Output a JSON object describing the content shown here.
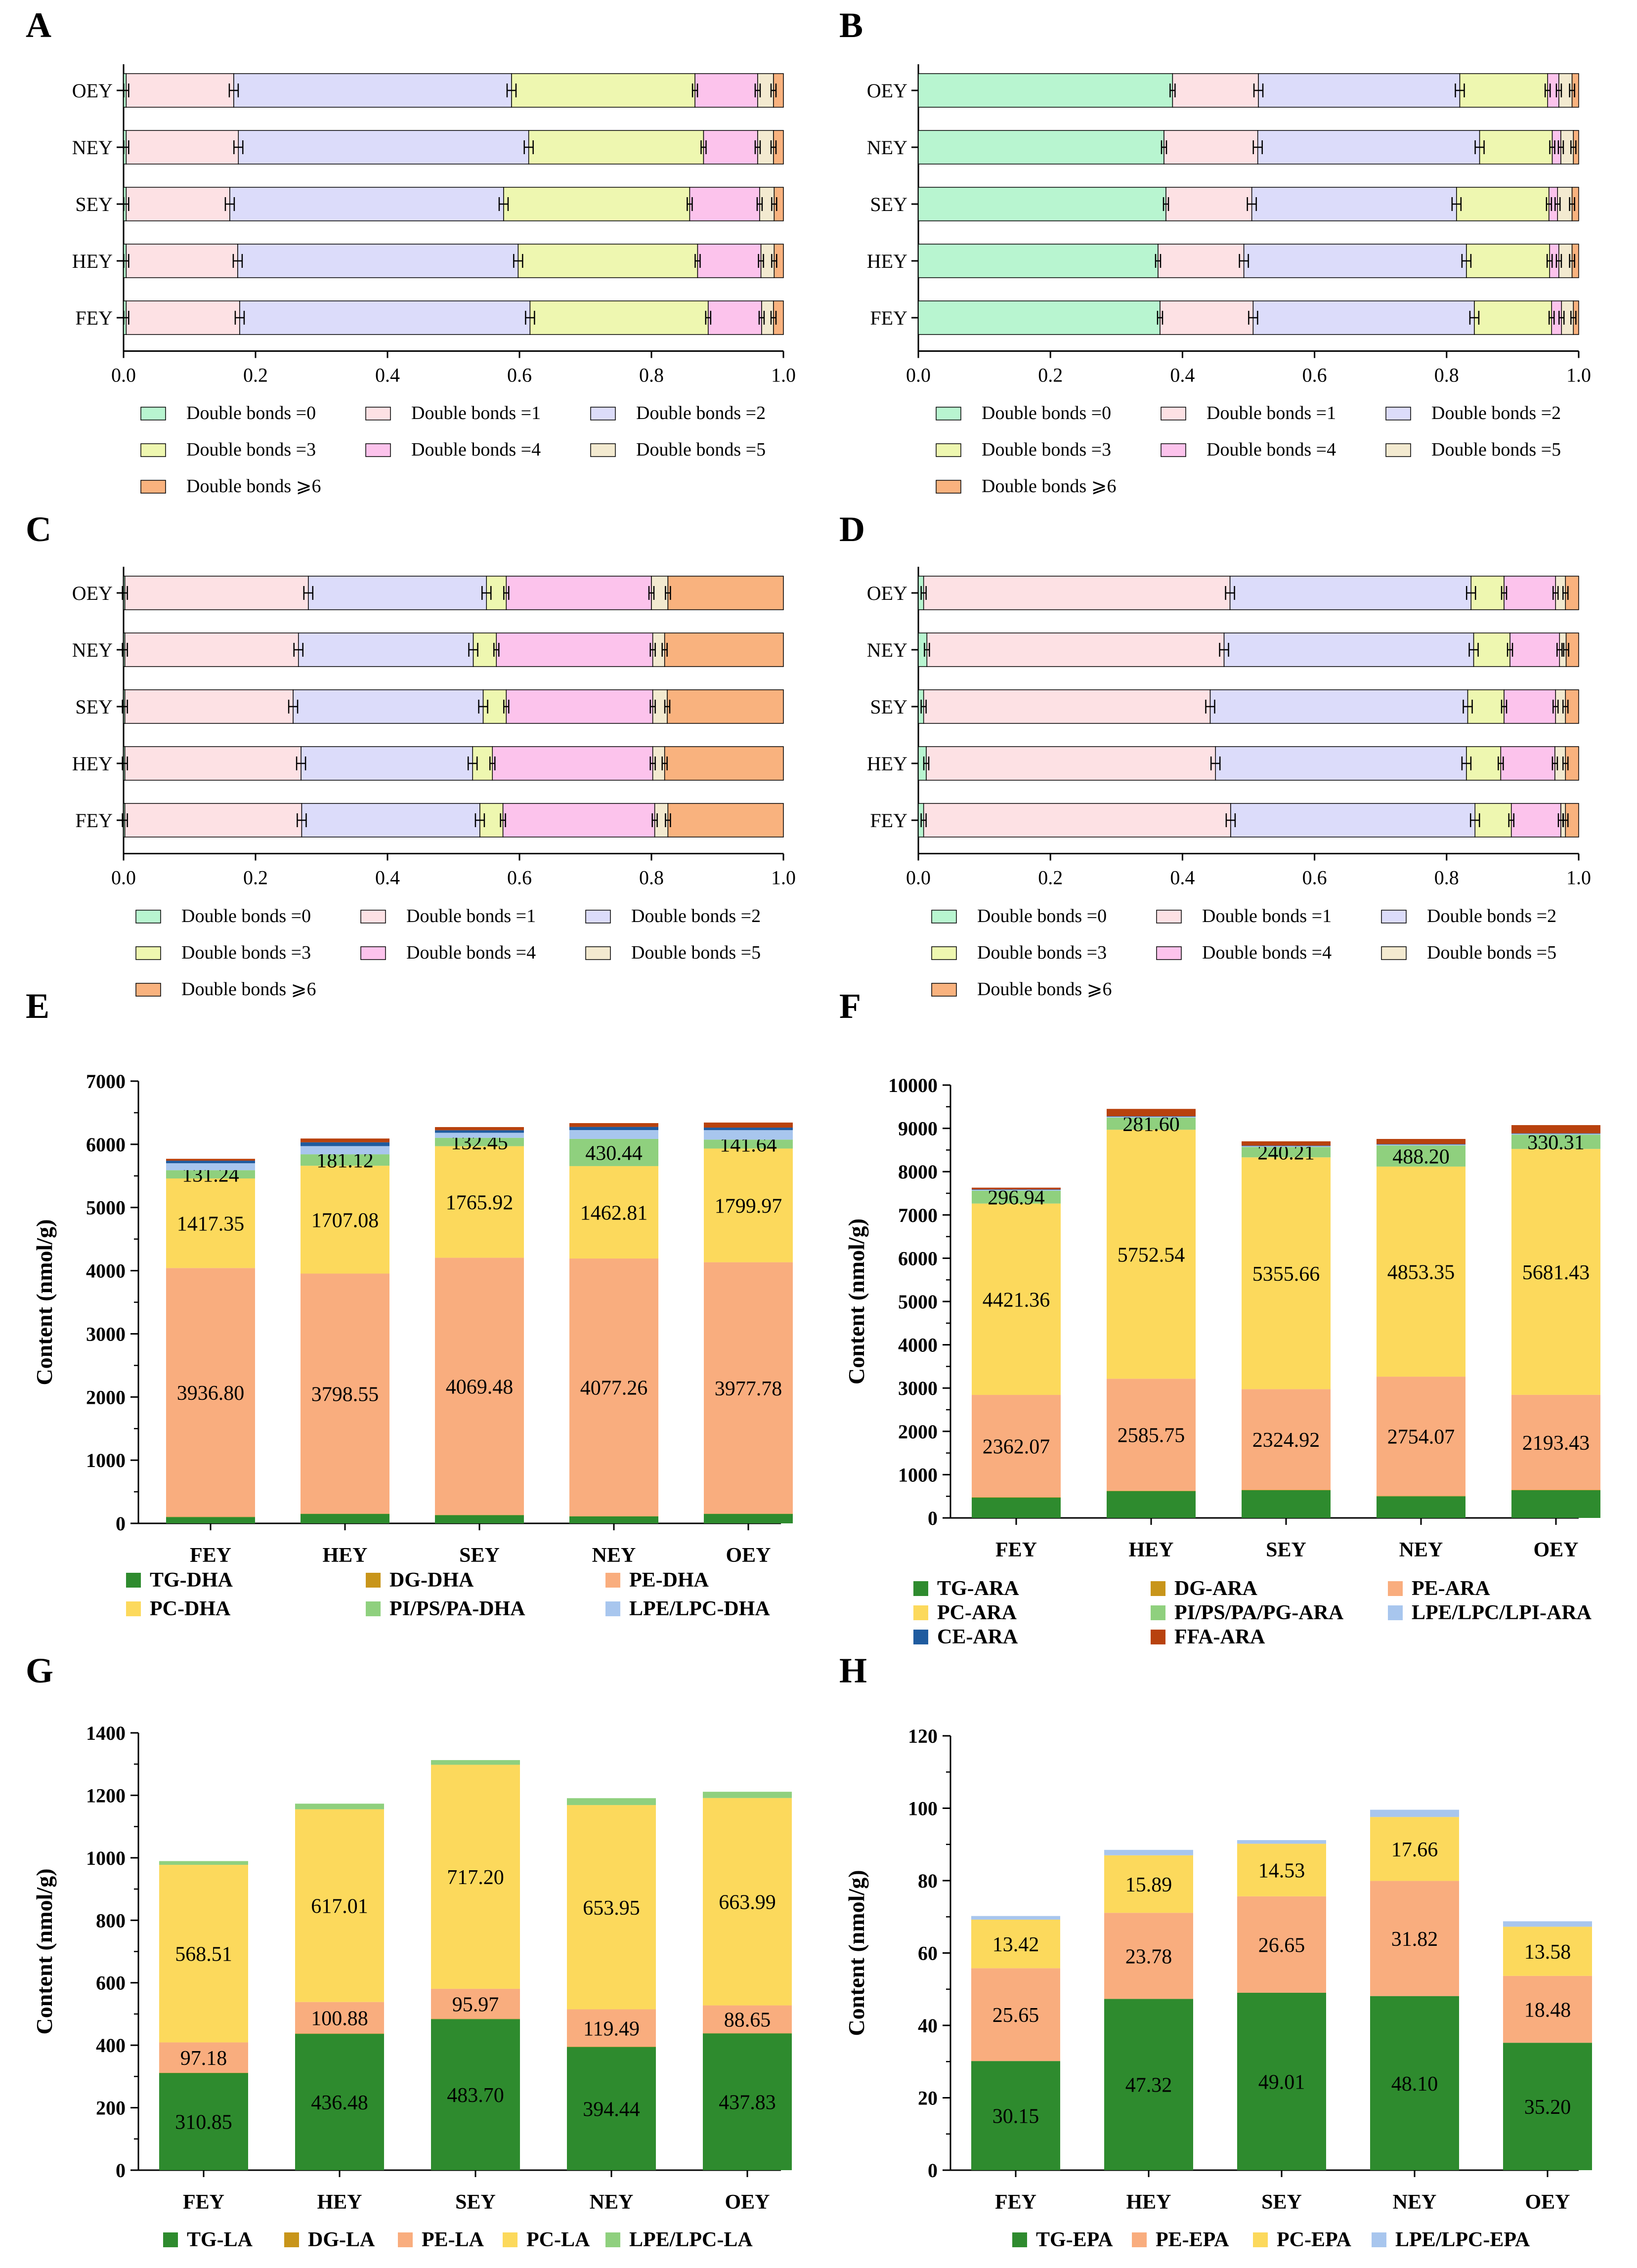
{
  "figure": {
    "background": "#ffffff"
  },
  "stack_palette": {
    "Double bonds =0": "#b8f5d0",
    "Double bonds =1": "#fde1e4",
    "Double bonds =2": "#dcdcfa",
    "Double bonds =3": "#eef7b0",
    "Double bonds =4": "#fcc3ec",
    "Double bonds =5": "#f3ead0",
    "Double bonds ⩾6": "#f9b27e",
    "TG": "#2e8b2e",
    "DG": "#c8951a",
    "PE": "#f9ad7e",
    "PC": "#fcd95c",
    "PI": "#8fd07e",
    "LPE": "#a8c6ee",
    "CE": "#1f5b9f",
    "FFA": "#b8420e"
  },
  "chart_data": [
    {
      "panel": "A",
      "type": "bar",
      "orientation": "horizontal",
      "stacked": true,
      "categories": [
        "OEY",
        "NEY",
        "SEY",
        "HEY",
        "FEY"
      ],
      "xlim": [
        0,
        1
      ],
      "xticks": [
        "0.0",
        "0.2",
        "0.4",
        "0.6",
        "0.8",
        "1.0"
      ],
      "series": [
        {
          "name": "Double bonds =0",
          "values": [
            0.004,
            0.004,
            0.004,
            0.004,
            0.004
          ]
        },
        {
          "name": "Double bonds =1",
          "values": [
            0.163,
            0.17,
            0.157,
            0.169,
            0.172
          ]
        },
        {
          "name": "Double bonds =2",
          "values": [
            0.421,
            0.44,
            0.415,
            0.425,
            0.44
          ]
        },
        {
          "name": "Double bonds =3",
          "values": [
            0.278,
            0.265,
            0.282,
            0.272,
            0.27
          ]
        },
        {
          "name": "Double bonds =4",
          "values": [
            0.095,
            0.082,
            0.106,
            0.096,
            0.081
          ]
        },
        {
          "name": "Double bonds =5",
          "values": [
            0.024,
            0.024,
            0.022,
            0.02,
            0.018
          ]
        },
        {
          "name": "Double bonds ⩾6",
          "values": [
            0.015,
            0.015,
            0.014,
            0.014,
            0.015
          ]
        }
      ],
      "legend": [
        "Double bonds =0",
        "Double bonds =1",
        "Double bonds =2",
        "Double bonds =3",
        "Double bonds =4",
        "Double bonds =5",
        "Double bonds ⩾6"
      ]
    },
    {
      "panel": "B",
      "type": "bar",
      "orientation": "horizontal",
      "stacked": true,
      "categories": [
        "OEY",
        "NEY",
        "SEY",
        "HEY",
        "FEY"
      ],
      "xlim": [
        0,
        1
      ],
      "xticks": [
        "0.0",
        "0.2",
        "0.4",
        "0.6",
        "0.8",
        "1.0"
      ],
      "series": [
        {
          "name": "Double bonds =0",
          "values": [
            0.385,
            0.372,
            0.375,
            0.363,
            0.366
          ]
        },
        {
          "name": "Double bonds =1",
          "values": [
            0.13,
            0.142,
            0.13,
            0.13,
            0.141
          ]
        },
        {
          "name": "Double bonds =2",
          "values": [
            0.305,
            0.336,
            0.31,
            0.337,
            0.335
          ]
        },
        {
          "name": "Double bonds =3",
          "values": [
            0.133,
            0.11,
            0.14,
            0.126,
            0.117
          ]
        },
        {
          "name": "Double bonds =4",
          "values": [
            0.017,
            0.013,
            0.013,
            0.014,
            0.015
          ]
        },
        {
          "name": "Double bonds =5",
          "values": [
            0.02,
            0.019,
            0.022,
            0.02,
            0.018
          ]
        },
        {
          "name": "Double bonds ⩾6",
          "values": [
            0.01,
            0.008,
            0.01,
            0.01,
            0.008
          ]
        }
      ],
      "legend": [
        "Double bonds =0",
        "Double bonds =1",
        "Double bonds =2",
        "Double bonds =3",
        "Double bonds =4",
        "Double bonds =5",
        "Double bonds ⩾6"
      ]
    },
    {
      "panel": "C",
      "type": "bar",
      "orientation": "horizontal",
      "stacked": true,
      "categories": [
        "OEY",
        "NEY",
        "SEY",
        "HEY",
        "FEY"
      ],
      "xlim": [
        0,
        1
      ],
      "xticks": [
        "0.0",
        "0.2",
        "0.4",
        "0.6",
        "0.8",
        "1.0"
      ],
      "series": [
        {
          "name": "Double bonds =0",
          "values": [
            0.002,
            0.002,
            0.002,
            0.002,
            0.002
          ]
        },
        {
          "name": "Double bonds =1",
          "values": [
            0.278,
            0.263,
            0.255,
            0.267,
            0.268
          ]
        },
        {
          "name": "Double bonds =2",
          "values": [
            0.27,
            0.265,
            0.288,
            0.26,
            0.27
          ]
        },
        {
          "name": "Double bonds =3",
          "values": [
            0.03,
            0.035,
            0.035,
            0.03,
            0.035
          ]
        },
        {
          "name": "Double bonds =4",
          "values": [
            0.22,
            0.237,
            0.222,
            0.243,
            0.23
          ]
        },
        {
          "name": "Double bonds =5",
          "values": [
            0.025,
            0.018,
            0.022,
            0.018,
            0.02
          ]
        },
        {
          "name": "Double bonds ⩾6",
          "values": [
            0.175,
            0.18,
            0.176,
            0.18,
            0.175
          ]
        }
      ],
      "legend": [
        "Double bonds =0",
        "Double bonds =1",
        "Double bonds =2",
        "Double bonds =3",
        "Double bonds =4",
        "Double bonds =5",
        "Double bonds ⩾6"
      ]
    },
    {
      "panel": "D",
      "type": "bar",
      "orientation": "horizontal",
      "stacked": true,
      "categories": [
        "OEY",
        "NEY",
        "SEY",
        "HEY",
        "FEY"
      ],
      "xlim": [
        0,
        1
      ],
      "xticks": [
        "0.0",
        "0.2",
        "0.4",
        "0.6",
        "0.8",
        "1.0"
      ],
      "series": [
        {
          "name": "Double bonds =0",
          "values": [
            0.008,
            0.013,
            0.008,
            0.012,
            0.008
          ]
        },
        {
          "name": "Double bonds =1",
          "values": [
            0.464,
            0.45,
            0.434,
            0.438,
            0.465
          ]
        },
        {
          "name": "Double bonds =2",
          "values": [
            0.365,
            0.378,
            0.39,
            0.38,
            0.37
          ]
        },
        {
          "name": "Double bonds =3",
          "values": [
            0.05,
            0.055,
            0.055,
            0.052,
            0.055
          ]
        },
        {
          "name": "Double bonds =4",
          "values": [
            0.078,
            0.075,
            0.078,
            0.082,
            0.075
          ]
        },
        {
          "name": "Double bonds =5",
          "values": [
            0.015,
            0.01,
            0.015,
            0.016,
            0.007
          ]
        },
        {
          "name": "Double bonds ⩾6",
          "values": [
            0.02,
            0.019,
            0.02,
            0.02,
            0.02
          ]
        }
      ],
      "legend": [
        "Double bonds =0",
        "Double bonds =1",
        "Double bonds =2",
        "Double bonds =3",
        "Double bonds =4",
        "Double bonds =5",
        "Double bonds ⩾6"
      ]
    },
    {
      "panel": "E",
      "type": "bar",
      "stacked": true,
      "categories": [
        "FEY",
        "HEY",
        "SEY",
        "NEY",
        "OEY"
      ],
      "ylabel": "Content (nmol/g)",
      "ylim": [
        0,
        7000
      ],
      "yticks": [
        "0",
        "1000",
        "2000",
        "3000",
        "4000",
        "5000",
        "6000",
        "7000"
      ],
      "series": [
        {
          "name": "TG-DHA",
          "key": "TG",
          "values": [
            100,
            150,
            130,
            110,
            150
          ]
        },
        {
          "name": "DG-DHA",
          "key": "DG",
          "values": [
            5,
            5,
            5,
            5,
            5
          ]
        },
        {
          "name": "PE-DHA",
          "key": "PE",
          "values": [
            3936.8,
            3798.55,
            4069.48,
            4077.26,
            3977.78
          ],
          "labels": [
            "3936.80",
            "3798.55",
            "4069.48",
            "4077.26",
            "3977.78"
          ]
        },
        {
          "name": "PC-DHA",
          "key": "PC",
          "values": [
            1417.35,
            1707.08,
            1765.92,
            1462.81,
            1799.97
          ],
          "labels": [
            "1417.35",
            "1707.08",
            "1765.92",
            "1462.81",
            "1799.97"
          ]
        },
        {
          "name": "PI/PS/PA-DHA",
          "key": "PI",
          "values": [
            131.24,
            181.12,
            132.45,
            430.44,
            141.64
          ],
          "labels": [
            "131.24",
            "181.12",
            "132.45",
            "430.44",
            "141.64"
          ]
        },
        {
          "name": "LPE/LPC-DHA",
          "key": "LPE",
          "values": [
            110,
            130,
            80,
            140,
            150
          ]
        },
        {
          "name": "CE-DHA",
          "key": "CE",
          "values": [
            40,
            60,
            40,
            50,
            40
          ],
          "in_legend": false
        },
        {
          "name": "FFA-DHA",
          "key": "FFA",
          "values": [
            30,
            60,
            50,
            60,
            80
          ],
          "in_legend": false
        }
      ],
      "legend": [
        "TG-DHA",
        "DG-DHA",
        "PE-DHA",
        "PC-DHA",
        "PI/PS/PA-DHA",
        "LPE/LPC-DHA"
      ]
    },
    {
      "panel": "F",
      "type": "bar",
      "stacked": true,
      "categories": [
        "FEY",
        "HEY",
        "SEY",
        "NEY",
        "OEY"
      ],
      "ylabel": "Content (nmol/g)",
      "ylim": [
        0,
        10000
      ],
      "yticks": [
        "0",
        "1000",
        "2000",
        "3000",
        "4000",
        "5000",
        "6000",
        "7000",
        "8000",
        "9000",
        "10000"
      ],
      "series": [
        {
          "name": "TG-ARA",
          "key": "TG",
          "values": [
            470,
            620,
            640,
            500,
            640
          ]
        },
        {
          "name": "DG-ARA",
          "key": "DG",
          "values": [
            10,
            10,
            10,
            10,
            10
          ]
        },
        {
          "name": "PE-ARA",
          "key": "PE",
          "values": [
            2362.07,
            2585.75,
            2324.92,
            2754.07,
            2193.43
          ],
          "labels": [
            "2362.07",
            "2585.75",
            "2324.92",
            "2754.07",
            "2193.43"
          ]
        },
        {
          "name": "PC-ARA",
          "key": "PC",
          "values": [
            4421.36,
            5752.54,
            5355.66,
            4853.35,
            5681.43
          ],
          "labels": [
            "4421.36",
            "5752.54",
            "5355.66",
            "4853.35",
            "5681.43"
          ]
        },
        {
          "name": "PI/PS/PA/PG-ARA",
          "key": "PI",
          "values": [
            296.94,
            281.6,
            240.21,
            488.2,
            330.31
          ],
          "labels": [
            "296.94",
            "281.60",
            "240.21",
            "488.20",
            "330.31"
          ]
        },
        {
          "name": "LPE/LPC/LPI-ARA",
          "key": "LPE",
          "values": [
            20,
            20,
            20,
            20,
            20
          ]
        },
        {
          "name": "CE-ARA",
          "key": "CE",
          "values": [
            10,
            10,
            10,
            10,
            10
          ]
        },
        {
          "name": "FFA-ARA",
          "key": "FFA",
          "values": [
            40,
            170,
            100,
            120,
            190
          ]
        }
      ],
      "legend": [
        "TG-ARA",
        "DG-ARA",
        "PE-ARA",
        "PC-ARA",
        "PI/PS/PA/PG-ARA",
        "LPE/LPC/LPI-ARA",
        "CE-ARA",
        "FFA-ARA"
      ]
    },
    {
      "panel": "G",
      "type": "bar",
      "stacked": true,
      "categories": [
        "FEY",
        "HEY",
        "SEY",
        "NEY",
        "OEY"
      ],
      "ylabel": "Content (nmol/g)",
      "ylim": [
        0,
        1400
      ],
      "yticks": [
        "0",
        "200",
        "400",
        "600",
        "800",
        "1000",
        "1200",
        "1400"
      ],
      "series": [
        {
          "name": "TG-LA",
          "key": "TG",
          "values": [
            310.85,
            436.48,
            483.7,
            394.44,
            437.83
          ],
          "labels": [
            "310.85",
            "436.48",
            "483.70",
            "394.44",
            "437.83"
          ]
        },
        {
          "name": "DG-LA",
          "key": "DG",
          "values": [
            1,
            1,
            1,
            1,
            1
          ]
        },
        {
          "name": "PE-LA",
          "key": "PE",
          "values": [
            97.18,
            100.88,
            95.97,
            119.49,
            88.65
          ],
          "labels": [
            "97.18",
            "100.88",
            "95.97",
            "119.49",
            "88.65"
          ]
        },
        {
          "name": "PC-LA",
          "key": "PC",
          "values": [
            568.51,
            617.01,
            717.2,
            653.95,
            663.99
          ],
          "labels": [
            "568.51",
            "617.01",
            "717.20",
            "653.95",
            "663.99"
          ]
        },
        {
          "name": "LPE/LPC-LA",
          "key": "PI",
          "values": [
            12,
            18,
            15,
            22,
            20
          ]
        }
      ],
      "legend": [
        "TG-LA",
        "DG-LA",
        "PE-LA",
        "PC-LA",
        "LPE/LPC-LA"
      ]
    },
    {
      "panel": "H",
      "type": "bar",
      "stacked": true,
      "categories": [
        "FEY",
        "HEY",
        "SEY",
        "NEY",
        "OEY"
      ],
      "ylabel": "Content (nmol/g)",
      "ylim": [
        0,
        120
      ],
      "yticks": [
        "0",
        "20",
        "40",
        "60",
        "80",
        "100",
        "120"
      ],
      "series": [
        {
          "name": "TG-EPA",
          "key": "TG",
          "values": [
            30.15,
            47.32,
            49.01,
            48.1,
            35.2
          ],
          "labels": [
            "30.15",
            "47.32",
            "49.01",
            "48.10",
            "35.20"
          ]
        },
        {
          "name": "PE-EPA",
          "key": "PE",
          "values": [
            25.65,
            23.78,
            26.65,
            31.82,
            18.48
          ],
          "labels": [
            "25.65",
            "23.78",
            "26.65",
            "31.82",
            "18.48"
          ]
        },
        {
          "name": "PC-EPA",
          "key": "PC",
          "values": [
            13.42,
            15.89,
            14.53,
            17.66,
            13.58
          ],
          "labels": [
            "13.42",
            "15.89",
            "14.53",
            "17.66",
            "13.58"
          ]
        },
        {
          "name": "LPE/LPC-EPA",
          "key": "LPE",
          "values": [
            1.0,
            1.5,
            1.0,
            2.0,
            1.5
          ]
        }
      ],
      "legend": [
        "TG-EPA",
        "PE-EPA",
        "PC-EPA",
        "LPE/LPC-EPA"
      ]
    }
  ]
}
